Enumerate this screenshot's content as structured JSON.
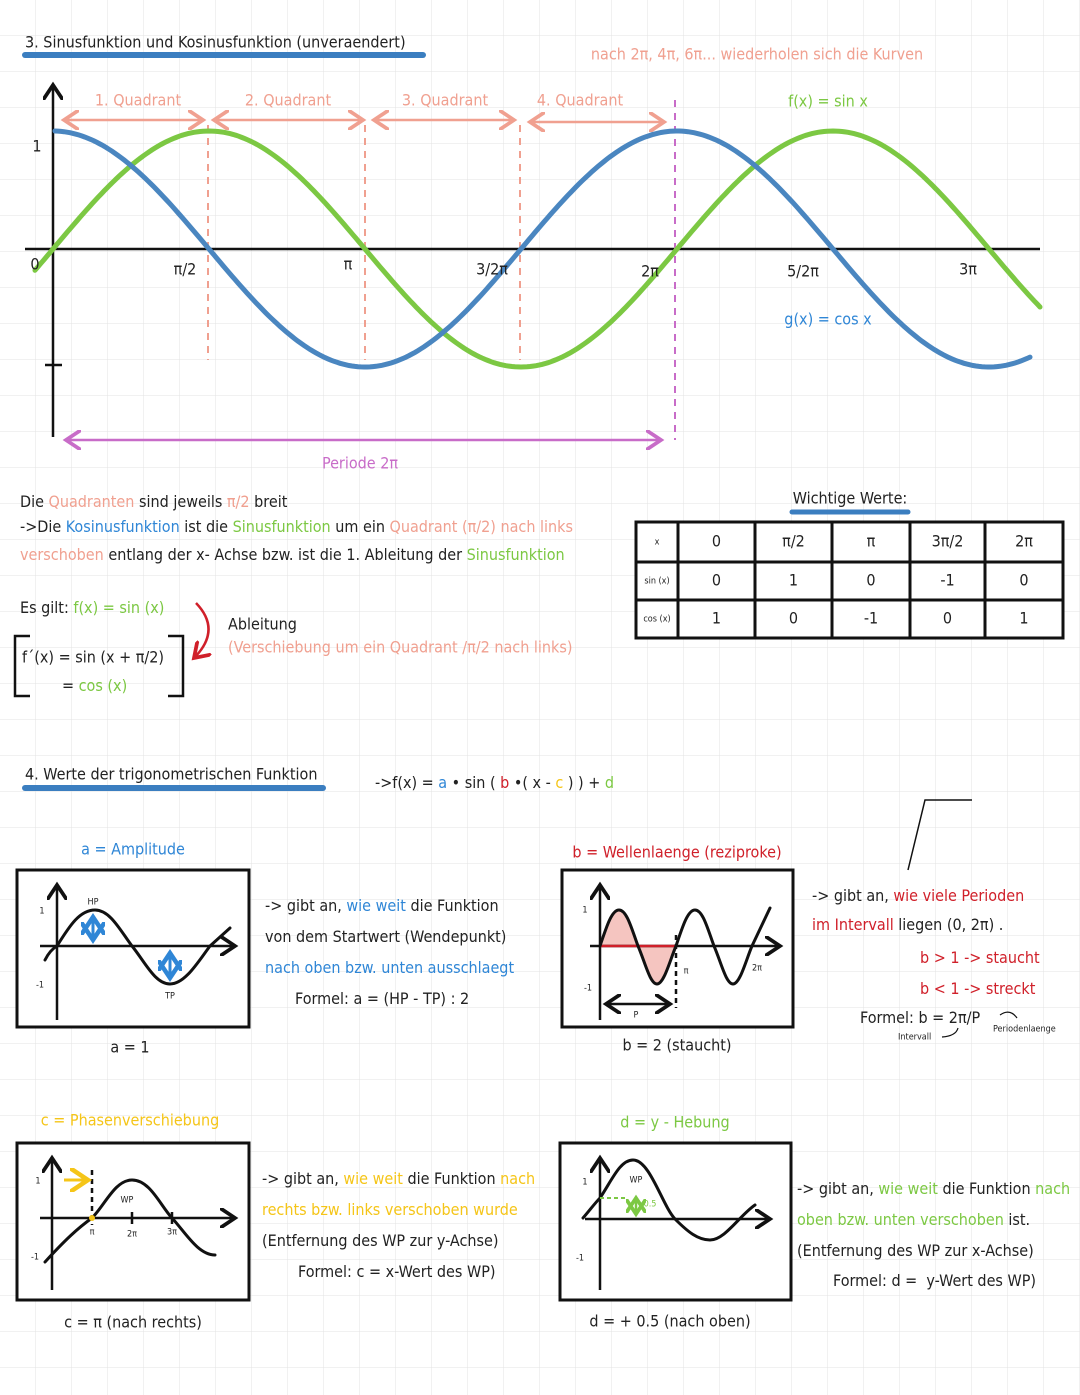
{
  "section3": {
    "title": "3. Sinusfunktion und Kosinusfunktion (unveraendert)",
    "note": "nach 2π, 4π, 6π... wiederholen sich die Kurven",
    "graph": {
      "quadrants": [
        "1. Quadrant",
        "2. Quadrant",
        "3. Quadrant",
        "4. Quadrant"
      ],
      "y_label": "1",
      "origin": "0",
      "x_labels": [
        "π/2",
        "π",
        "3/2π",
        "2π",
        "5/2π",
        "3π"
      ],
      "sin_label": "f(x) = sin x",
      "cos_label": "g(x) = cos x",
      "period": "Periode 2π"
    },
    "explanation": [
      [
        "Die ",
        "Quadranten",
        " sind jeweils ",
        "π/2",
        " breit"
      ],
      [
        "->Die ",
        "Kosinusfunktion",
        " ist die ",
        "Sinusfunktion",
        " um ein ",
        "Quadrant (π/2) nach links"
      ],
      [
        "verschoben",
        " entlang der x- Achse bzw. ist die 1. Ableitung der ",
        "Sinusfunktion"
      ]
    ],
    "rule": {
      "intro": "Es gilt: ",
      "f": "f(x) = sin (x)",
      "derivative": "f´(x) = sin (x + π/2)",
      "result_eq": "= ",
      "result": "cos (x)",
      "arrow_label": "Ableitung",
      "arrow_note": "(Verschiebung um ein Quadrant /π/2 nach links)"
    },
    "table": {
      "title": "Wichtige Werte:",
      "header": [
        "x",
        "0",
        "π/2",
        "π",
        "3π/2",
        "2π"
      ],
      "rows": [
        [
          "sin (x)",
          "0",
          "1",
          "0",
          "-1",
          "0"
        ],
        [
          "cos (x)",
          "1",
          "0",
          "-1",
          "0",
          "1"
        ]
      ]
    }
  },
  "section4": {
    "title": "4. Werte der trigonometrischen Funktion",
    "formula": [
      "->f(x) = ",
      "a",
      " • sin ( ",
      "b",
      " •( x - ",
      "c",
      " ) ) + ",
      "d"
    ],
    "a": {
      "title": "a = Amplitude",
      "labels": [
        "HP",
        "TP",
        "1",
        "-1"
      ],
      "lines": [
        [
          "-> gibt an, ",
          "wie weit",
          " die Funktion"
        ],
        [
          "von dem Startwert (Wendepunkt)"
        ],
        [
          "nach oben bzw. unten ausschlaegt"
        ],
        [
          "Formel: a = (HP - TP) : 2"
        ]
      ],
      "caption": "a = 1"
    },
    "b": {
      "title": "b = Wellenlaenge (reziproke)",
      "labels": [
        "1",
        "-1",
        "π",
        "2π",
        "P"
      ],
      "lines": [
        [
          "-> gibt an, ",
          "wie viele Perioden"
        ],
        [
          "im Intervall",
          " liegen (0, 2π) ."
        ],
        [
          "b > 1 -> staucht"
        ],
        [
          "b < 1 -> streckt"
        ],
        [
          "Formel: b = 2π/P"
        ]
      ],
      "intervall": "Intervall",
      "periodenlaenge": "Periodenlaenge",
      "caption": "b = 2 (staucht)"
    },
    "c": {
      "title": "c = Phasenverschiebung",
      "labels": [
        "1",
        "-1",
        "WP",
        "π",
        "2π",
        "3π"
      ],
      "lines": [
        [
          "-> gibt an, ",
          "wie weit",
          " die Funktion ",
          "nach"
        ],
        [
          "rechts bzw. links verschoben wurde"
        ],
        [
          "(Entfernung des WP zur y-Achse)"
        ],
        [
          "Formel: c = x-Wert des WP)"
        ]
      ],
      "caption": "c = π (nach rechts)"
    },
    "d": {
      "title": "d = y - Hebung",
      "labels": [
        "1",
        "-1",
        "WP",
        "0.5"
      ],
      "lines": [
        [
          "-> gibt an, ",
          "wie weit",
          " die Funktion ",
          "nach"
        ],
        [
          "oben bzw. unten verschoben",
          " ist."
        ],
        [
          "(Entfernung des WP zur x-Achse)"
        ],
        [
          "Formel: d =  y-Wert des WP)"
        ]
      ],
      "caption": "d = + 0.5 (nach oben)"
    }
  }
}
